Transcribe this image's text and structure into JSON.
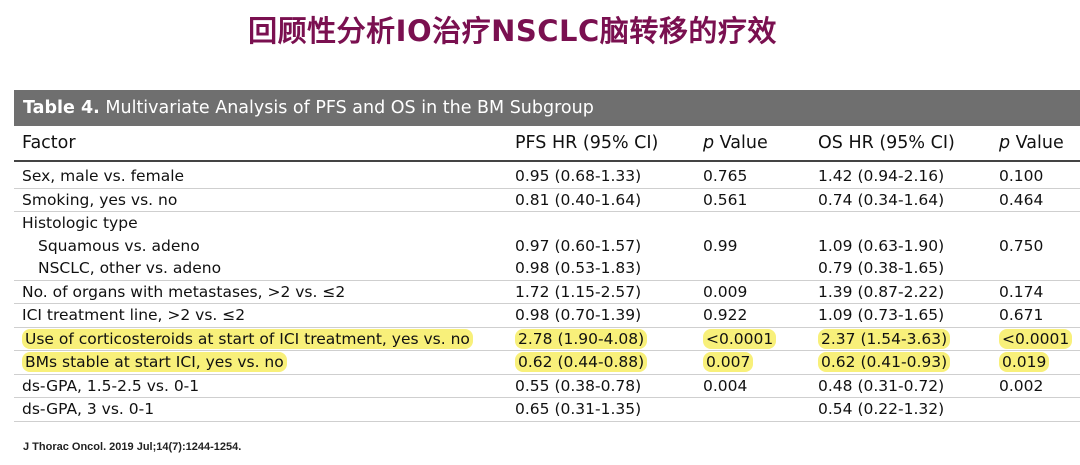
{
  "slide_title": "回顾性分析IO治疗NSCLC脑转移的疗效",
  "table": {
    "caption_label": "Table 4.",
    "caption_text": "Multivariate Analysis of PFS and OS in the BM Subgroup",
    "headers": {
      "factor": "Factor",
      "pfs_hr": "PFS HR (95% CI)",
      "pfs_p_italic": "p",
      "pfs_p_rest": " Value",
      "os_hr": "OS HR (95% CI)",
      "os_p_italic": "p",
      "os_p_rest": " Value"
    },
    "rows": [
      {
        "factor": "Sex, male vs. female",
        "pfs_hr": "0.95 (0.68-1.33)",
        "pfs_p": "0.765",
        "os_hr": "1.42 (0.94-2.16)",
        "os_p": "0.100"
      },
      {
        "factor": "Smoking, yes vs. no",
        "pfs_hr": "0.81 (0.40-1.64)",
        "pfs_p": "0.561",
        "os_hr": "0.74 (0.34-1.64)",
        "os_p": "0.464"
      },
      {
        "factor": "Histologic type",
        "pfs_hr": "",
        "pfs_p": "",
        "os_hr": "",
        "os_p": ""
      },
      {
        "factor": "Squamous vs. adeno",
        "pfs_hr": "0.97 (0.60-1.57)",
        "pfs_p": "0.99",
        "os_hr": "1.09 (0.63-1.90)",
        "os_p": "0.750"
      },
      {
        "factor": "NSCLC, other vs. adeno",
        "pfs_hr": "0.98 (0.53-1.83)",
        "pfs_p": "",
        "os_hr": "0.79 (0.38-1.65)",
        "os_p": ""
      },
      {
        "factor": "No. of organs with metastases, >2 vs. ≤2",
        "pfs_hr": "1.72 (1.15-2.57)",
        "pfs_p": "0.009",
        "os_hr": "1.39 (0.87-2.22)",
        "os_p": "0.174"
      },
      {
        "factor": "ICI treatment line, >2 vs. ≤2",
        "pfs_hr": "0.98 (0.70-1.39)",
        "pfs_p": "0.922",
        "os_hr": "1.09 (0.73-1.65)",
        "os_p": "0.671"
      },
      {
        "factor": "Use of corticosteroids at start of ICI treatment, yes vs. no",
        "pfs_hr": "2.78 (1.90-4.08)",
        "pfs_p": "<0.0001",
        "os_hr": "2.37 (1.54-3.63)",
        "os_p": "<0.0001"
      },
      {
        "factor": "BMs stable at start ICI, yes vs. no",
        "pfs_hr": "0.62 (0.44-0.88)",
        "pfs_p": "0.007",
        "os_hr": "0.62 (0.41-0.93)",
        "os_p": "0.019"
      },
      {
        "factor": "ds-GPA, 1.5-2.5 vs. 0-1",
        "pfs_hr": "0.55 (0.38-0.78)",
        "pfs_p": "0.004",
        "os_hr": "0.48 (0.31-0.72)",
        "os_p": "0.002"
      },
      {
        "factor": "ds-GPA, 3 vs. 0-1",
        "pfs_hr": "0.65 (0.31-1.35)",
        "pfs_p": "",
        "os_hr": "0.54 (0.22-1.32)",
        "os_p": ""
      }
    ]
  },
  "highlight_color": "#f8f07a",
  "title_color": "#7a1050",
  "citation": "J Thorac Oncol. 2019 Jul;14(7):1244-1254."
}
